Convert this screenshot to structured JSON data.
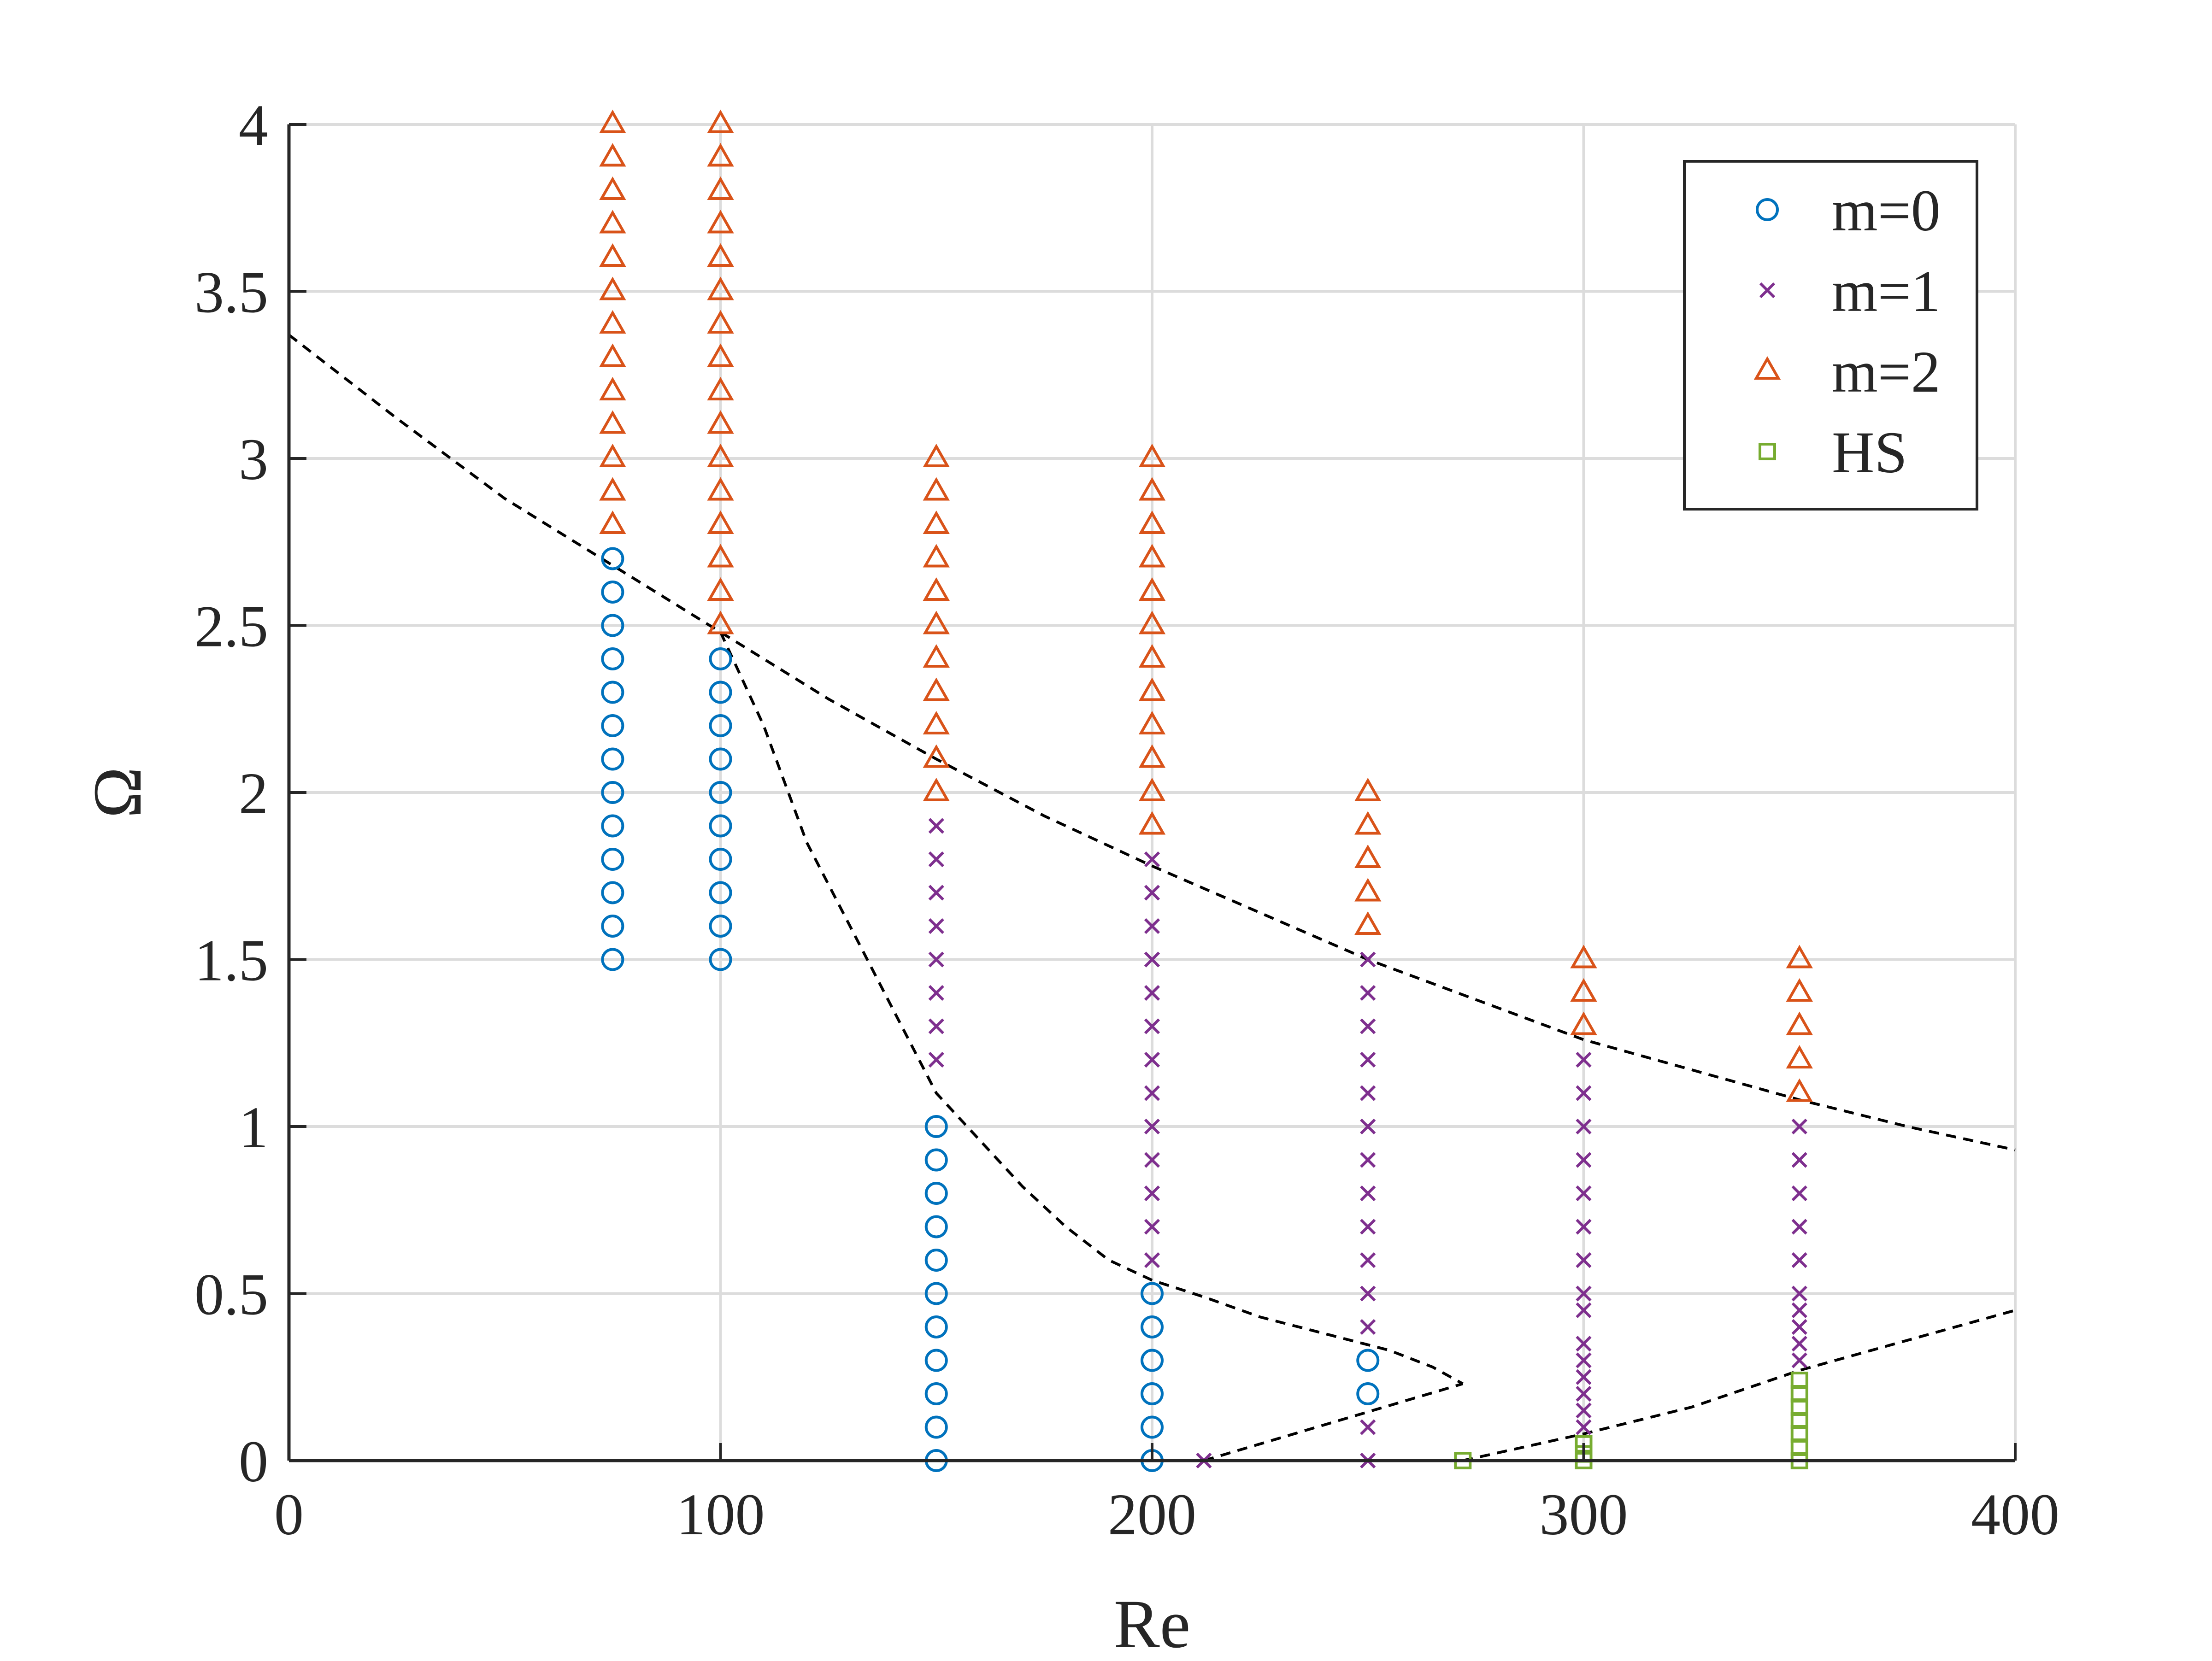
{
  "chart_data": {
    "type": "scatter",
    "xlabel": "Re",
    "ylabel": "Ω",
    "xlim": [
      0,
      400
    ],
    "ylim": [
      0,
      4
    ],
    "xticks": [
      "0",
      "100",
      "200",
      "300",
      "400"
    ],
    "yticks": [
      "0",
      "0.5",
      "1",
      "1.5",
      "2",
      "2.5",
      "3",
      "3.5",
      "4"
    ],
    "grid": true,
    "legend_position": "top-right",
    "series": [
      {
        "name": "m=0",
        "marker": "circle",
        "color": "#0072BD",
        "points": [
          [
            75,
            1.5
          ],
          [
            75,
            1.6
          ],
          [
            75,
            1.7
          ],
          [
            75,
            1.8
          ],
          [
            75,
            1.9
          ],
          [
            75,
            2.0
          ],
          [
            75,
            2.1
          ],
          [
            75,
            2.2
          ],
          [
            75,
            2.3
          ],
          [
            75,
            2.4
          ],
          [
            75,
            2.5
          ],
          [
            75,
            2.6
          ],
          [
            75,
            2.7
          ],
          [
            100,
            1.5
          ],
          [
            100,
            1.6
          ],
          [
            100,
            1.7
          ],
          [
            100,
            1.8
          ],
          [
            100,
            1.9
          ],
          [
            100,
            2.0
          ],
          [
            100,
            2.1
          ],
          [
            100,
            2.2
          ],
          [
            100,
            2.3
          ],
          [
            100,
            2.4
          ],
          [
            150,
            0.0
          ],
          [
            150,
            0.1
          ],
          [
            150,
            0.2
          ],
          [
            150,
            0.3
          ],
          [
            150,
            0.4
          ],
          [
            150,
            0.5
          ],
          [
            150,
            0.6
          ],
          [
            150,
            0.7
          ],
          [
            150,
            0.8
          ],
          [
            150,
            0.9
          ],
          [
            150,
            1.0
          ],
          [
            200,
            0.0
          ],
          [
            200,
            0.1
          ],
          [
            200,
            0.2
          ],
          [
            200,
            0.3
          ],
          [
            200,
            0.4
          ],
          [
            200,
            0.5
          ],
          [
            250,
            0.2
          ],
          [
            250,
            0.3
          ]
        ]
      },
      {
        "name": "m=1",
        "marker": "x",
        "color": "#7E2F8E",
        "points": [
          [
            150,
            1.2
          ],
          [
            150,
            1.3
          ],
          [
            150,
            1.4
          ],
          [
            150,
            1.5
          ],
          [
            150,
            1.6
          ],
          [
            150,
            1.7
          ],
          [
            150,
            1.8
          ],
          [
            150,
            1.9
          ],
          [
            200,
            0.6
          ],
          [
            200,
            0.7
          ],
          [
            200,
            0.8
          ],
          [
            200,
            0.9
          ],
          [
            200,
            1.0
          ],
          [
            200,
            1.1
          ],
          [
            200,
            1.2
          ],
          [
            200,
            1.3
          ],
          [
            200,
            1.4
          ],
          [
            200,
            1.5
          ],
          [
            200,
            1.6
          ],
          [
            200,
            1.7
          ],
          [
            200,
            1.8
          ],
          [
            212,
            0.0
          ],
          [
            250,
            0.0
          ],
          [
            250,
            0.1
          ],
          [
            250,
            0.4
          ],
          [
            250,
            0.5
          ],
          [
            250,
            0.6
          ],
          [
            250,
            0.7
          ],
          [
            250,
            0.8
          ],
          [
            250,
            0.9
          ],
          [
            250,
            1.0
          ],
          [
            250,
            1.1
          ],
          [
            250,
            1.2
          ],
          [
            250,
            1.3
          ],
          [
            250,
            1.4
          ],
          [
            250,
            1.5
          ],
          [
            300,
            0.1
          ],
          [
            300,
            0.15
          ],
          [
            300,
            0.2
          ],
          [
            300,
            0.25
          ],
          [
            300,
            0.3
          ],
          [
            300,
            0.35
          ],
          [
            300,
            0.45
          ],
          [
            300,
            0.5
          ],
          [
            300,
            0.6
          ],
          [
            300,
            0.7
          ],
          [
            300,
            0.8
          ],
          [
            300,
            0.9
          ],
          [
            300,
            1.0
          ],
          [
            300,
            1.1
          ],
          [
            300,
            1.2
          ],
          [
            350,
            0.3
          ],
          [
            350,
            0.35
          ],
          [
            350,
            0.4
          ],
          [
            350,
            0.45
          ],
          [
            350,
            0.5
          ],
          [
            350,
            0.6
          ],
          [
            350,
            0.7
          ],
          [
            350,
            0.8
          ],
          [
            350,
            0.9
          ],
          [
            350,
            1.0
          ]
        ]
      },
      {
        "name": "m=2",
        "marker": "triangle",
        "color": "#D95319",
        "points": [
          [
            75,
            2.8
          ],
          [
            75,
            2.9
          ],
          [
            75,
            3.0
          ],
          [
            75,
            3.1
          ],
          [
            75,
            3.2
          ],
          [
            75,
            3.3
          ],
          [
            75,
            3.4
          ],
          [
            75,
            3.5
          ],
          [
            75,
            3.6
          ],
          [
            75,
            3.7
          ],
          [
            75,
            3.8
          ],
          [
            75,
            3.9
          ],
          [
            75,
            4.0
          ],
          [
            100,
            2.5
          ],
          [
            100,
            2.6
          ],
          [
            100,
            2.7
          ],
          [
            100,
            2.8
          ],
          [
            100,
            2.9
          ],
          [
            100,
            3.0
          ],
          [
            100,
            3.1
          ],
          [
            100,
            3.2
          ],
          [
            100,
            3.3
          ],
          [
            100,
            3.4
          ],
          [
            100,
            3.5
          ],
          [
            100,
            3.6
          ],
          [
            100,
            3.7
          ],
          [
            100,
            3.8
          ],
          [
            100,
            3.9
          ],
          [
            100,
            4.0
          ],
          [
            150,
            2.0
          ],
          [
            150,
            2.1
          ],
          [
            150,
            2.2
          ],
          [
            150,
            2.3
          ],
          [
            150,
            2.4
          ],
          [
            150,
            2.5
          ],
          [
            150,
            2.6
          ],
          [
            150,
            2.7
          ],
          [
            150,
            2.8
          ],
          [
            150,
            2.9
          ],
          [
            150,
            3.0
          ],
          [
            200,
            1.9
          ],
          [
            200,
            2.0
          ],
          [
            200,
            2.1
          ],
          [
            200,
            2.2
          ],
          [
            200,
            2.3
          ],
          [
            200,
            2.4
          ],
          [
            200,
            2.5
          ],
          [
            200,
            2.6
          ],
          [
            200,
            2.7
          ],
          [
            200,
            2.8
          ],
          [
            200,
            2.9
          ],
          [
            200,
            3.0
          ],
          [
            250,
            1.6
          ],
          [
            250,
            1.7
          ],
          [
            250,
            1.8
          ],
          [
            250,
            1.9
          ],
          [
            250,
            2.0
          ],
          [
            300,
            1.3
          ],
          [
            300,
            1.4
          ],
          [
            300,
            1.5
          ],
          [
            350,
            1.1
          ],
          [
            350,
            1.2
          ],
          [
            350,
            1.3
          ],
          [
            350,
            1.4
          ],
          [
            350,
            1.5
          ]
        ]
      },
      {
        "name": "HS",
        "marker": "square",
        "color": "#77AC30",
        "points": [
          [
            272,
            0.0
          ],
          [
            300,
            0.0
          ],
          [
            300,
            0.02
          ],
          [
            300,
            0.05
          ],
          [
            350,
            0.0
          ],
          [
            350,
            0.04
          ],
          [
            350,
            0.08
          ],
          [
            350,
            0.12
          ],
          [
            350,
            0.16
          ],
          [
            350,
            0.2
          ],
          [
            350,
            0.24
          ]
        ]
      }
    ],
    "dashed_curves": [
      {
        "color": "#000000",
        "points": [
          [
            0,
            3.37
          ],
          [
            25,
            3.12
          ],
          [
            50,
            2.88
          ],
          [
            75,
            2.68
          ],
          [
            100,
            2.48
          ],
          [
            125,
            2.28
          ],
          [
            150,
            2.1
          ],
          [
            175,
            1.93
          ],
          [
            200,
            1.78
          ],
          [
            225,
            1.64
          ],
          [
            250,
            1.5
          ],
          [
            275,
            1.38
          ],
          [
            300,
            1.26
          ],
          [
            325,
            1.17
          ],
          [
            350,
            1.08
          ],
          [
            375,
            1.0
          ],
          [
            400,
            0.93
          ]
        ]
      },
      {
        "color": "#000000",
        "points": [
          [
            100,
            2.48
          ],
          [
            110,
            2.2
          ],
          [
            120,
            1.85
          ],
          [
            130,
            1.6
          ],
          [
            140,
            1.35
          ],
          [
            150,
            1.1
          ],
          [
            160,
            0.96
          ],
          [
            170,
            0.82
          ],
          [
            180,
            0.7
          ],
          [
            190,
            0.6
          ],
          [
            200,
            0.54
          ],
          [
            212,
            0.49
          ],
          [
            225,
            0.43
          ],
          [
            240,
            0.38
          ],
          [
            255,
            0.33
          ],
          [
            265,
            0.28
          ],
          [
            272,
            0.23
          ]
        ]
      },
      {
        "color": "#000000",
        "points": [
          [
            212,
            0.0
          ],
          [
            272,
            0.23
          ]
        ]
      },
      {
        "color": "#000000",
        "points": [
          [
            272,
            0.0
          ],
          [
            300,
            0.08
          ],
          [
            325,
            0.16
          ],
          [
            350,
            0.27
          ],
          [
            375,
            0.36
          ],
          [
            400,
            0.45
          ]
        ]
      }
    ]
  }
}
